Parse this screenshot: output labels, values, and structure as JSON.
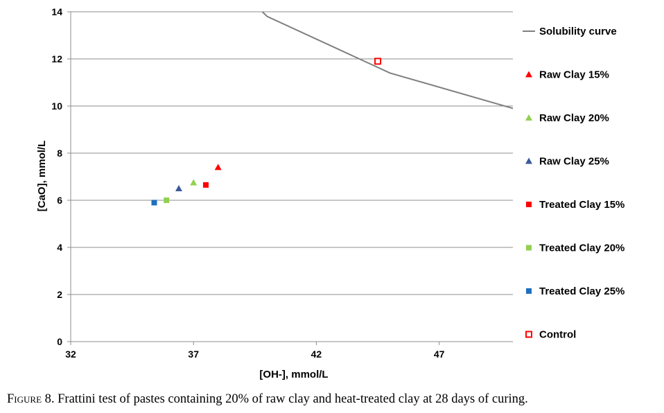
{
  "chart_data": {
    "type": "scatter",
    "xlabel": "[OH-], mmol/L",
    "ylabel": "[CaO], mmol/L",
    "xlim": [
      32,
      50
    ],
    "ylim": [
      0,
      14
    ],
    "xticks": [
      32,
      37,
      42,
      47
    ],
    "yticks": [
      0,
      2,
      4,
      6,
      8,
      10,
      12,
      14
    ],
    "grid": "horizontal",
    "legend_position": "right",
    "series": [
      {
        "name": "Solubility curve",
        "kind": "line",
        "color": "#7f7f7f",
        "x": [
          39.8,
          40.0,
          45.0,
          50.0
        ],
        "y": [
          14.0,
          13.8,
          11.4,
          9.9
        ]
      },
      {
        "name": "Raw Clay 15%",
        "marker": "triangle",
        "color": "#ff0000",
        "x": [
          38.0
        ],
        "y": [
          7.4
        ]
      },
      {
        "name": "Raw Clay 20%",
        "marker": "triangle",
        "color": "#92d050",
        "x": [
          37.0
        ],
        "y": [
          6.75
        ]
      },
      {
        "name": "Raw Clay 25%",
        "marker": "triangle",
        "color": "#3c5a9a",
        "x": [
          36.4
        ],
        "y": [
          6.5
        ]
      },
      {
        "name": "Treated Clay 15%",
        "marker": "square",
        "color": "#ff0000",
        "x": [
          37.5
        ],
        "y": [
          6.65
        ]
      },
      {
        "name": "Treated Clay 20%",
        "marker": "square",
        "color": "#92d050",
        "x": [
          35.9
        ],
        "y": [
          6.0
        ]
      },
      {
        "name": "Treated Clay 25%",
        "marker": "square",
        "color": "#1f6fbf",
        "x": [
          35.4
        ],
        "y": [
          5.9
        ]
      },
      {
        "name": "Control",
        "marker": "hollow-square",
        "color": "#ff0000",
        "x": [
          44.5
        ],
        "y": [
          11.9
        ]
      }
    ]
  },
  "caption": {
    "label_prefix": "Figure 8.",
    "text": " Frattini test of pastes containing 20% of raw clay and heat-treated clay at 28 days of curing."
  }
}
